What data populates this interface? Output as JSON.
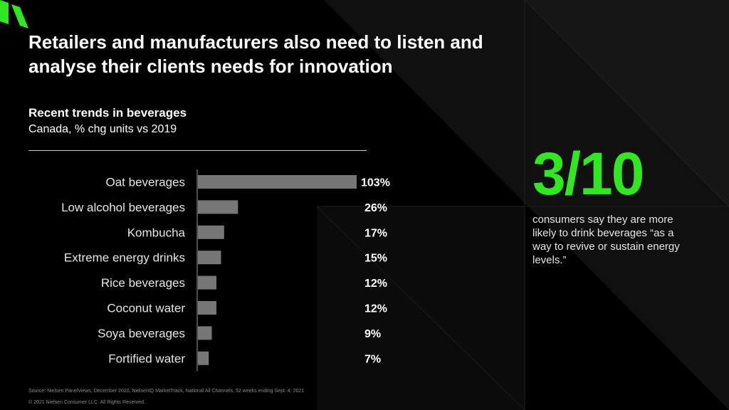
{
  "slide": {
    "title": "Retailers and manufacturers also need to listen and analyse their clients needs for innovation",
    "subtitle": "Recent trends in beverages",
    "subtitle2": "Canada, % chg units vs 2019",
    "stat": "3/10",
    "stat_text": "consumers say they are more likely to drink beverages “as a way to revive or sustain energy levels.”",
    "source": "Source: Nielsen PanelViews, December 2020, NielsenIQ MarketTrack, National All Channels, 52 weeks ending Sept. 4, 2021",
    "copyright": "© 2021 Nielsen Consumer LLC. All Rights Reserved."
  },
  "colors": {
    "accent": "#2fe81f",
    "bar": "#777777",
    "background": "#000000"
  },
  "chart_data": {
    "type": "bar",
    "orientation": "horizontal",
    "title": "Recent trends in beverages",
    "subtitle": "Canada, % chg units vs 2019",
    "categories": [
      "Oat beverages",
      "Low alcohol beverages",
      "Kombucha",
      "Extreme energy drinks",
      "Rice beverages",
      "Coconut water",
      "Soya beverages",
      "Fortified water"
    ],
    "values": [
      103,
      26,
      17,
      15,
      12,
      12,
      9,
      7
    ],
    "value_labels": [
      "103%",
      "26%",
      "17%",
      "15%",
      "12%",
      "12%",
      "9%",
      "7%"
    ],
    "xlim": [
      0,
      103
    ],
    "grid": false,
    "legend": "none"
  }
}
